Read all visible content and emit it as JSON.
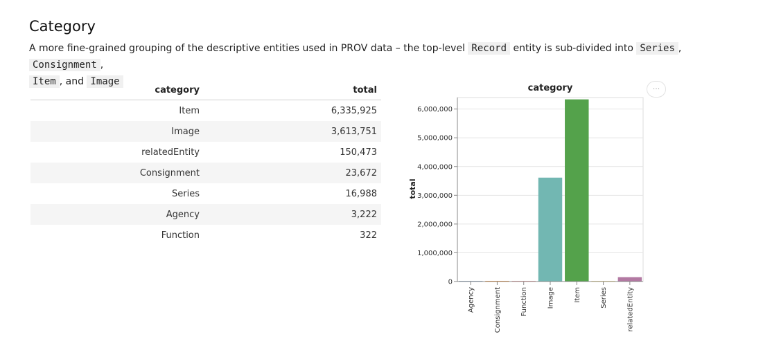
{
  "section": {
    "title": "Category",
    "description": {
      "part1": "A more fine-grained grouping of the descriptive entities used in PROV data – the top-level",
      "code_record": "Record",
      "part2": "entity is sub-divided into",
      "code_series": "Series",
      "sep1": ",",
      "code_consignment": "Consignment",
      "sep2": ",",
      "code_item": "Item",
      "part3": ", and",
      "code_image": "Image"
    }
  },
  "table": {
    "headers": [
      "category",
      "total"
    ],
    "rows": [
      {
        "category": "Item",
        "total": "6,335,925"
      },
      {
        "category": "Image",
        "total": "3,613,751"
      },
      {
        "category": "relatedEntity",
        "total": "150,473"
      },
      {
        "category": "Consignment",
        "total": "23,672"
      },
      {
        "category": "Series",
        "total": "16,988"
      },
      {
        "category": "Agency",
        "total": "3,222"
      },
      {
        "category": "Function",
        "total": "322"
      }
    ]
  },
  "menu": {
    "label": "···"
  },
  "chart_data": {
    "type": "bar",
    "title": "category",
    "xlabel": "",
    "ylabel": "total",
    "ylim": [
      0,
      6400000
    ],
    "yticks": [
      0,
      1000000,
      2000000,
      3000000,
      4000000,
      5000000,
      6000000
    ],
    "ytick_labels": [
      "0",
      "1,000,000",
      "2,000,000",
      "3,000,000",
      "4,000,000",
      "5,000,000",
      "6,000,000"
    ],
    "categories": [
      "Agency",
      "Consignment",
      "Function",
      "Image",
      "Item",
      "Series",
      "relatedEntity"
    ],
    "values": [
      3222,
      23672,
      322,
      3613751,
      6335925,
      16988,
      150473
    ],
    "colors": [
      "#4c78a8",
      "#f58518",
      "#e45756",
      "#72b7b2",
      "#54a24b",
      "#eeca3b",
      "#b279a2"
    ],
    "grid": true
  }
}
